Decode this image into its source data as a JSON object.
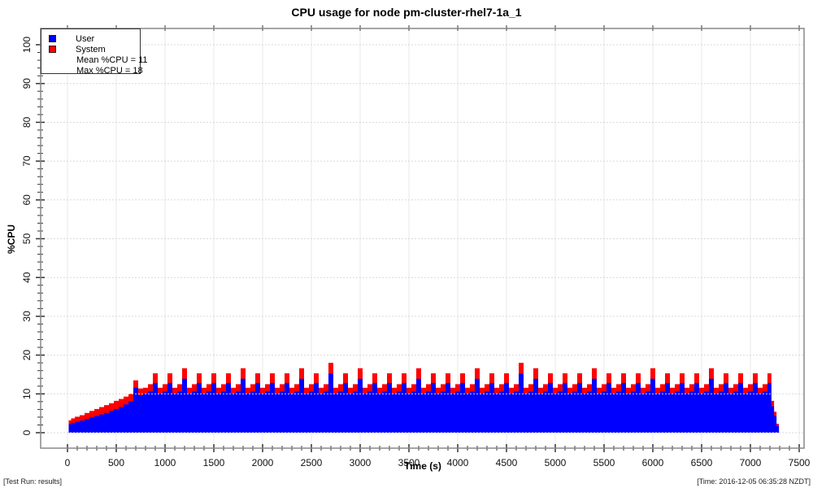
{
  "title": "CPU usage for node pm-cluster-rhel7-1a_1",
  "footer": {
    "left": "[Test Run: results]",
    "right": "[Time: 2016-12-05 06:35:28 NZDT]"
  },
  "legend": {
    "user_label": "User",
    "system_label": "System",
    "mean_label": "Mean %CPU = 11",
    "max_label": "Max %CPU = 18"
  },
  "axes": {
    "x_label": "Time (s)",
    "y_label": "%CPU",
    "x_range": [
      0,
      7500
    ],
    "y_range": [
      0,
      100
    ],
    "x_ticks": [
      0,
      500,
      1000,
      1500,
      2000,
      2500,
      3000,
      3500,
      4000,
      4500,
      5000,
      5500,
      6000,
      6500,
      7000,
      7500
    ],
    "x_minor_step": 100,
    "y_ticks": [
      0,
      10,
      20,
      30,
      40,
      50,
      60,
      70,
      80,
      90,
      100
    ],
    "y_minor_step": 2,
    "grid": true
  },
  "colors": {
    "user": "#0000ff",
    "system": "#ff0000",
    "frame": "#888888",
    "tick": "#333333",
    "grid_vertical": "#e8e8e8",
    "grid_horizontal": "#d9d9d9"
  },
  "chart_data": {
    "type": "area",
    "stacked": true,
    "series_names": [
      "User",
      "System"
    ],
    "mean_pct_cpu": 11,
    "max_pct_cpu": 18,
    "samples_format": [
      "time_s",
      "user_pct",
      "system_pct"
    ],
    "samples": [
      [
        25,
        2.2,
        1.0
      ],
      [
        50,
        2.5,
        1.2
      ],
      [
        100,
        2.8,
        1.3
      ],
      [
        150,
        3.1,
        1.4
      ],
      [
        200,
        3.5,
        1.6
      ],
      [
        250,
        3.9,
        1.7
      ],
      [
        300,
        4.3,
        1.8
      ],
      [
        350,
        4.7,
        1.9
      ],
      [
        400,
        5.1,
        2.0
      ],
      [
        450,
        5.6,
        2.0
      ],
      [
        500,
        6.1,
        2.1
      ],
      [
        550,
        6.6,
        2.1
      ],
      [
        600,
        7.3,
        2.0
      ],
      [
        650,
        8.1,
        1.9
      ],
      [
        700,
        11.6,
        1.9
      ],
      [
        750,
        9.7,
        1.7
      ],
      [
        800,
        10.1,
        1.5
      ],
      [
        850,
        10.6,
        1.9
      ],
      [
        900,
        12.8,
        2.5
      ],
      [
        950,
        10.1,
        1.5
      ],
      [
        1000,
        10.6,
        1.9
      ],
      [
        1050,
        12.8,
        2.5
      ],
      [
        1100,
        10.1,
        1.5
      ],
      [
        1150,
        10.6,
        1.9
      ],
      [
        1200,
        13.9,
        2.7
      ],
      [
        1250,
        10.1,
        1.5
      ],
      [
        1300,
        10.6,
        1.9
      ],
      [
        1350,
        12.8,
        2.5
      ],
      [
        1400,
        10.1,
        1.5
      ],
      [
        1450,
        10.6,
        1.9
      ],
      [
        1500,
        12.8,
        2.5
      ],
      [
        1550,
        10.1,
        1.5
      ],
      [
        1600,
        10.6,
        1.9
      ],
      [
        1650,
        12.8,
        2.5
      ],
      [
        1700,
        10.1,
        1.5
      ],
      [
        1750,
        10.6,
        1.9
      ],
      [
        1800,
        13.9,
        2.7
      ],
      [
        1850,
        10.1,
        1.5
      ],
      [
        1900,
        10.6,
        1.9
      ],
      [
        1950,
        12.8,
        2.5
      ],
      [
        2000,
        10.1,
        1.5
      ],
      [
        2050,
        10.6,
        1.9
      ],
      [
        2100,
        12.8,
        2.5
      ],
      [
        2150,
        10.1,
        1.5
      ],
      [
        2200,
        10.6,
        1.9
      ],
      [
        2250,
        12.8,
        2.5
      ],
      [
        2300,
        10.1,
        1.5
      ],
      [
        2350,
        10.6,
        1.9
      ],
      [
        2400,
        13.9,
        2.7
      ],
      [
        2450,
        10.1,
        1.5
      ],
      [
        2500,
        10.6,
        1.9
      ],
      [
        2550,
        12.8,
        2.5
      ],
      [
        2600,
        10.1,
        1.5
      ],
      [
        2650,
        10.6,
        1.9
      ],
      [
        2700,
        15.2,
        2.8
      ],
      [
        2750,
        10.1,
        1.5
      ],
      [
        2800,
        10.6,
        1.9
      ],
      [
        2850,
        12.8,
        2.5
      ],
      [
        2900,
        10.1,
        1.5
      ],
      [
        2950,
        10.6,
        1.9
      ],
      [
        3000,
        13.9,
        2.7
      ],
      [
        3050,
        10.1,
        1.5
      ],
      [
        3100,
        10.6,
        1.9
      ],
      [
        3150,
        12.8,
        2.5
      ],
      [
        3200,
        10.1,
        1.5
      ],
      [
        3250,
        10.6,
        1.9
      ],
      [
        3300,
        12.8,
        2.5
      ],
      [
        3350,
        10.1,
        1.5
      ],
      [
        3400,
        10.6,
        1.9
      ],
      [
        3450,
        12.8,
        2.5
      ],
      [
        3500,
        10.1,
        1.5
      ],
      [
        3550,
        10.6,
        1.9
      ],
      [
        3600,
        13.9,
        2.7
      ],
      [
        3650,
        10.1,
        1.5
      ],
      [
        3700,
        10.6,
        1.9
      ],
      [
        3750,
        12.8,
        2.5
      ],
      [
        3800,
        10.1,
        1.5
      ],
      [
        3850,
        10.6,
        1.9
      ],
      [
        3900,
        12.8,
        2.5
      ],
      [
        3950,
        10.1,
        1.5
      ],
      [
        4000,
        10.6,
        1.9
      ],
      [
        4050,
        12.8,
        2.5
      ],
      [
        4100,
        10.1,
        1.5
      ],
      [
        4150,
        10.6,
        1.9
      ],
      [
        4200,
        13.9,
        2.7
      ],
      [
        4250,
        10.1,
        1.5
      ],
      [
        4300,
        10.6,
        1.9
      ],
      [
        4350,
        12.8,
        2.5
      ],
      [
        4400,
        10.1,
        1.5
      ],
      [
        4450,
        10.6,
        1.9
      ],
      [
        4500,
        12.8,
        2.5
      ],
      [
        4550,
        10.1,
        1.5
      ],
      [
        4600,
        10.6,
        1.9
      ],
      [
        4650,
        15.2,
        2.8
      ],
      [
        4700,
        10.1,
        1.5
      ],
      [
        4750,
        10.6,
        1.9
      ],
      [
        4800,
        13.9,
        2.7
      ],
      [
        4850,
        10.1,
        1.5
      ],
      [
        4900,
        10.6,
        1.9
      ],
      [
        4950,
        12.8,
        2.5
      ],
      [
        5000,
        10.1,
        1.5
      ],
      [
        5050,
        10.6,
        1.9
      ],
      [
        5100,
        12.8,
        2.5
      ],
      [
        5150,
        10.1,
        1.5
      ],
      [
        5200,
        10.6,
        1.9
      ],
      [
        5250,
        12.8,
        2.5
      ],
      [
        5300,
        10.1,
        1.5
      ],
      [
        5350,
        10.6,
        1.9
      ],
      [
        5400,
        13.9,
        2.7
      ],
      [
        5450,
        10.1,
        1.5
      ],
      [
        5500,
        10.6,
        1.9
      ],
      [
        5550,
        12.8,
        2.5
      ],
      [
        5600,
        10.1,
        1.5
      ],
      [
        5650,
        10.6,
        1.9
      ],
      [
        5700,
        12.8,
        2.5
      ],
      [
        5750,
        10.1,
        1.5
      ],
      [
        5800,
        10.6,
        1.9
      ],
      [
        5850,
        12.8,
        2.5
      ],
      [
        5900,
        10.1,
        1.5
      ],
      [
        5950,
        10.6,
        1.9
      ],
      [
        6000,
        13.9,
        2.7
      ],
      [
        6050,
        10.1,
        1.5
      ],
      [
        6100,
        10.6,
        1.9
      ],
      [
        6150,
        12.8,
        2.5
      ],
      [
        6200,
        10.1,
        1.5
      ],
      [
        6250,
        10.6,
        1.9
      ],
      [
        6300,
        12.8,
        2.5
      ],
      [
        6350,
        10.1,
        1.5
      ],
      [
        6400,
        10.6,
        1.9
      ],
      [
        6450,
        12.8,
        2.5
      ],
      [
        6500,
        10.1,
        1.5
      ],
      [
        6550,
        10.6,
        1.9
      ],
      [
        6600,
        13.9,
        2.7
      ],
      [
        6650,
        10.1,
        1.5
      ],
      [
        6700,
        10.6,
        1.9
      ],
      [
        6750,
        12.8,
        2.5
      ],
      [
        6800,
        10.1,
        1.5
      ],
      [
        6850,
        10.6,
        1.9
      ],
      [
        6900,
        12.8,
        2.5
      ],
      [
        6950,
        10.1,
        1.5
      ],
      [
        7000,
        10.6,
        1.9
      ],
      [
        7050,
        12.8,
        2.5
      ],
      [
        7100,
        10.1,
        1.5
      ],
      [
        7150,
        10.6,
        1.9
      ],
      [
        7200,
        12.8,
        2.5
      ],
      [
        7230,
        6.8,
        1.4
      ],
      [
        7255,
        4.3,
        1.1
      ],
      [
        7280,
        1.7,
        0.6
      ]
    ]
  }
}
